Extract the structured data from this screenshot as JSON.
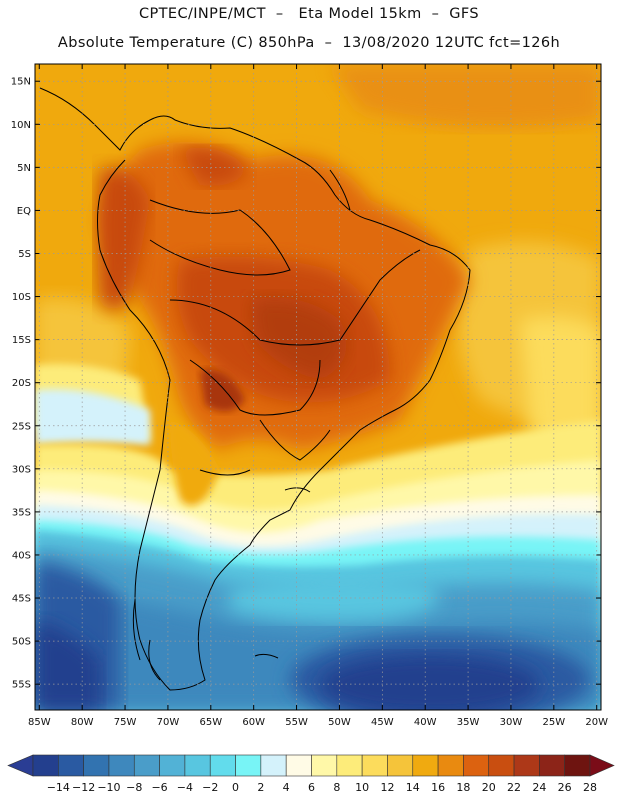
{
  "header": {
    "line1": "CPTEC/INPE/MCT  –   Eta Model 15km  –  GFS",
    "line2": "Absolute Temperature (C) 850hPa  –  13/08/2020 12UTC fct=126h"
  },
  "map": {
    "lat_labels": [
      "15N",
      "10N",
      "5N",
      "EQ",
      "5S",
      "10S",
      "15S",
      "20S",
      "25S",
      "30S",
      "35S",
      "40S",
      "45S",
      "50S",
      "55S"
    ],
    "lon_labels": [
      "85W",
      "80W",
      "75W",
      "70W",
      "65W",
      "60W",
      "55W",
      "50W",
      "45W",
      "40W",
      "35W",
      "30W",
      "25W",
      "20W"
    ],
    "lat_range": [
      -58,
      17
    ],
    "lon_range": [
      -85.5,
      -19.5
    ],
    "gridlines": true
  },
  "legend": {
    "labels": [
      "-14",
      "-12",
      "-10",
      "-8",
      "-6",
      "-4",
      "-2",
      "0",
      "2",
      "4",
      "6",
      "8",
      "10",
      "12",
      "14",
      "16",
      "18",
      "20",
      "22",
      "24",
      "26",
      "28"
    ],
    "colors": [
      "#233f8e",
      "#2a5aa2",
      "#3273b0",
      "#3e88bd",
      "#4a9dc9",
      "#52b2d6",
      "#58c6e0",
      "#62dcec",
      "#78f4f6",
      "#d4f2fb",
      "#fffbe6",
      "#fff8a8",
      "#fdec7a",
      "#fcdc5c",
      "#f5c43a",
      "#f0aa10",
      "#e98a10",
      "#dc6210",
      "#c94e10",
      "#ad3818",
      "#8c2418",
      "#6e1410"
    ],
    "left_arrow_color": "#2a3d94",
    "right_arrow_color": "#7a0c18"
  },
  "colors": {
    "ocean_tropical": "#f0a90d",
    "land_hot": "#e06a10",
    "land_core": "#c84a0c",
    "cold_deep": "#233f8e"
  }
}
